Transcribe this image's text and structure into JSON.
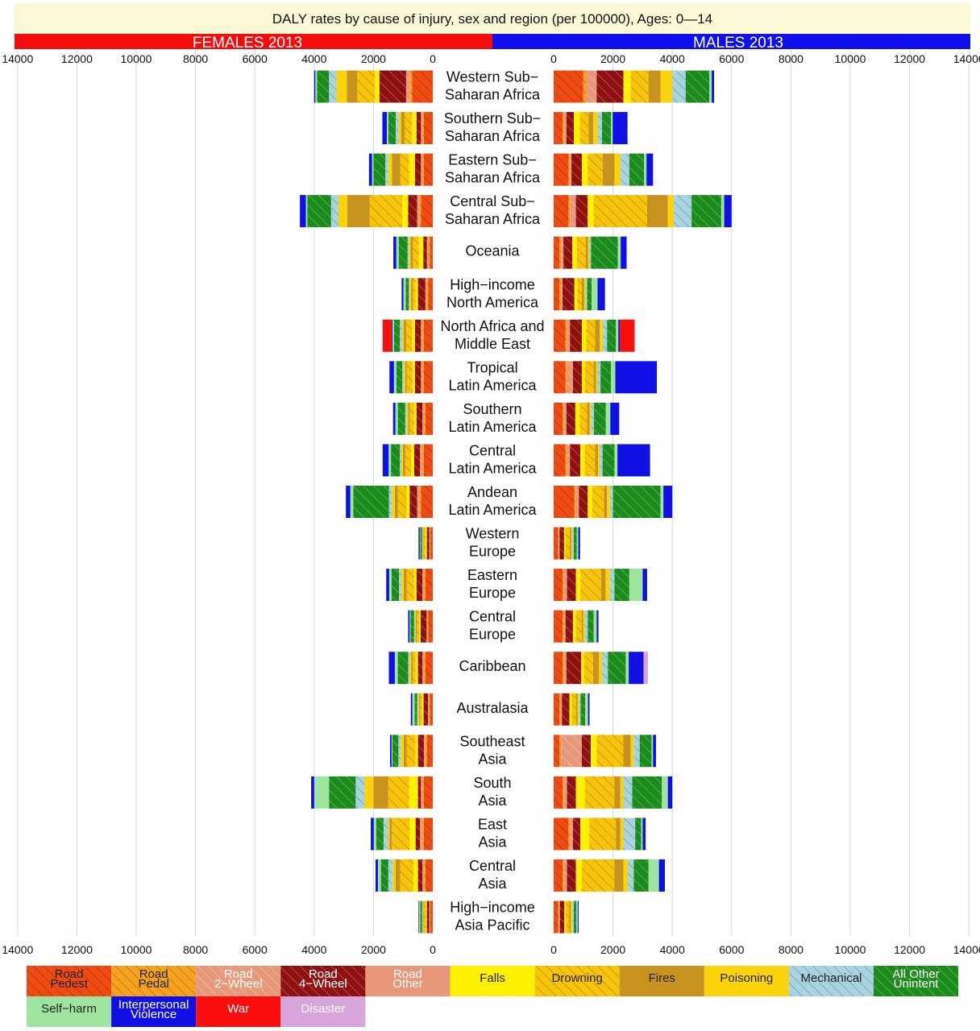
{
  "chart_data": {
    "type": "bar",
    "title": "DALY rates by cause of injury, sex and region (per 100000), Ages: 0—14",
    "panels": [
      "FEMALES 2013",
      "MALES 2013"
    ],
    "axis_ticks": [
      "14000",
      "12000",
      "10000",
      "8000",
      "6000",
      "4000",
      "2000",
      "0"
    ],
    "axis_ticks_right": [
      "0",
      "2000",
      "4000",
      "6000",
      "8000",
      "10000",
      "12000",
      "14000"
    ],
    "xlim": [
      0,
      14000
    ],
    "grid": true,
    "legend_position": "bottom",
    "causes": [
      {
        "name": "Road Pedest",
        "label": [
          "Road",
          "Pedest"
        ],
        "color": "#f04b12",
        "hatch": true,
        "text_color": "#222222"
      },
      {
        "name": "Road Pedal",
        "label": [
          "Road",
          "Pedal"
        ],
        "color": "#f7a21e",
        "hatch": true,
        "text_color": "#222222"
      },
      {
        "name": "Road 2-Wheel",
        "label": [
          "Road",
          "2−Wheel"
        ],
        "color": "#e8987a",
        "hatch": true,
        "text_color": "#ffffff"
      },
      {
        "name": "Road 4-Wheel",
        "label": [
          "Road",
          "4−Wheel"
        ],
        "color": "#8e1010",
        "hatch": true,
        "text_color": "#ffffff"
      },
      {
        "name": "Road Other",
        "label": [
          "Road",
          "Other"
        ],
        "color": "#e8987a",
        "hatch": false,
        "text_color": "#ffffff"
      },
      {
        "name": "Falls",
        "label": [
          "Falls"
        ],
        "color": "#fdf100",
        "hatch": false,
        "text_color": "#222222"
      },
      {
        "name": "Drowning",
        "label": [
          "Drowning"
        ],
        "color": "#f8c40a",
        "hatch": true,
        "text_color": "#222222"
      },
      {
        "name": "Fires",
        "label": [
          "Fires"
        ],
        "color": "#c8921e",
        "hatch": false,
        "text_color": "#222222"
      },
      {
        "name": "Poisoning",
        "label": [
          "Poisoning"
        ],
        "color": "#fbd30b",
        "hatch": false,
        "text_color": "#222222"
      },
      {
        "name": "Mechanical",
        "label": [
          "Mechanical"
        ],
        "color": "#a8d4e2",
        "hatch": true,
        "text_color": "#222222"
      },
      {
        "name": "All Other Unintent",
        "label": [
          "All Other",
          "Unintent"
        ],
        "color": "#1b8c1b",
        "hatch": true,
        "text_color": "#ffffff"
      },
      {
        "name": "Self-harm",
        "label": [
          "Self−harm"
        ],
        "color": "#9ee39e",
        "hatch": false,
        "text_color": "#222222"
      },
      {
        "name": "Interpersonal Violence",
        "label": [
          "Interpersonal",
          "Violence"
        ],
        "color": "#1010e6",
        "hatch": false,
        "text_color": "#ffffff"
      },
      {
        "name": "War",
        "label": [
          "War"
        ],
        "color": "#fa0d0d",
        "hatch": false,
        "text_color": "#ffffff"
      },
      {
        "name": "Disaster",
        "label": [
          "Disaster"
        ],
        "color": "#d8a4dc",
        "hatch": false,
        "text_color": "#ffffff"
      }
    ],
    "regions": [
      {
        "name": [
          "Western Sub−",
          "Saharan Africa"
        ],
        "female": [
          700,
          80,
          120,
          900,
          0,
          150,
          600,
          350,
          350,
          250,
          400,
          60,
          40,
          0,
          0
        ],
        "male": [
          1000,
          100,
          350,
          900,
          0,
          250,
          600,
          400,
          400,
          450,
          800,
          80,
          80,
          0,
          0
        ]
      },
      {
        "name": [
          "Southern Sub−",
          "Saharan Africa"
        ],
        "female": [
          300,
          50,
          50,
          150,
          0,
          150,
          250,
          120,
          80,
          100,
          250,
          50,
          150,
          0,
          0
        ],
        "male": [
          300,
          50,
          80,
          250,
          0,
          200,
          300,
          150,
          150,
          150,
          300,
          60,
          500,
          0,
          0
        ]
      },
      {
        "name": [
          "Eastern Sub−",
          "Saharan Africa"
        ],
        "female": [
          300,
          50,
          50,
          200,
          0,
          200,
          300,
          280,
          120,
          100,
          400,
          50,
          100,
          0,
          0
        ],
        "male": [
          500,
          50,
          50,
          350,
          0,
          200,
          500,
          400,
          200,
          300,
          500,
          80,
          220,
          0,
          0
        ]
      },
      {
        "name": [
          "Central Sub−",
          "Saharan Africa"
        ],
        "female": [
          400,
          50,
          80,
          300,
          0,
          200,
          1100,
          750,
          300,
          250,
          800,
          50,
          200,
          0,
          0
        ],
        "male": [
          500,
          50,
          200,
          400,
          0,
          200,
          1800,
          700,
          200,
          600,
          1000,
          100,
          250,
          0,
          0
        ]
      },
      {
        "name": [
          "Oceania"
        ],
        "female": [
          100,
          50,
          50,
          120,
          0,
          150,
          200,
          80,
          50,
          50,
          300,
          80,
          100,
          0,
          0
        ],
        "male": [
          200,
          50,
          80,
          300,
          0,
          150,
          300,
          80,
          50,
          50,
          900,
          100,
          200,
          0,
          0
        ]
      },
      {
        "name": [
          "High−income",
          "North America"
        ],
        "female": [
          150,
          50,
          50,
          250,
          0,
          80,
          100,
          50,
          50,
          30,
          100,
          80,
          60,
          0,
          0
        ],
        "male": [
          200,
          50,
          50,
          400,
          0,
          100,
          150,
          80,
          50,
          50,
          150,
          200,
          250,
          0,
          0
        ]
      },
      {
        "name": [
          "North Africa and",
          "Middle East"
        ],
        "female": [
          300,
          50,
          50,
          200,
          0,
          100,
          200,
          80,
          50,
          80,
          200,
          50,
          30,
          300,
          0
        ],
        "male": [
          400,
          50,
          100,
          400,
          0,
          150,
          300,
          150,
          100,
          150,
          300,
          80,
          50,
          500,
          0
        ]
      },
      {
        "name": [
          "Tropical",
          "Latin America"
        ],
        "female": [
          300,
          50,
          50,
          200,
          0,
          80,
          200,
          50,
          50,
          50,
          200,
          80,
          150,
          0,
          0
        ],
        "male": [
          400,
          50,
          200,
          300,
          0,
          100,
          300,
          80,
          50,
          100,
          350,
          150,
          1400,
          0,
          0
        ]
      },
      {
        "name": [
          "Southern",
          "Latin America"
        ],
        "female": [
          250,
          50,
          50,
          200,
          0,
          80,
          150,
          50,
          50,
          50,
          250,
          80,
          80,
          0,
          0
        ],
        "male": [
          300,
          50,
          80,
          300,
          0,
          150,
          250,
          80,
          50,
          100,
          400,
          150,
          300,
          0,
          0
        ]
      },
      {
        "name": [
          "Central",
          "Latin America"
        ],
        "female": [
          300,
          50,
          80,
          200,
          0,
          100,
          200,
          80,
          50,
          50,
          300,
          80,
          200,
          0,
          0
        ],
        "male": [
          400,
          50,
          100,
          350,
          0,
          150,
          350,
          100,
          50,
          100,
          400,
          100,
          1100,
          0,
          0
        ]
      },
      {
        "name": [
          "Andean",
          "Latin America"
        ],
        "female": [
          400,
          50,
          80,
          250,
          0,
          100,
          300,
          100,
          100,
          100,
          1200,
          100,
          150,
          0,
          0
        ],
        "male": [
          700,
          50,
          100,
          300,
          0,
          150,
          400,
          100,
          100,
          100,
          1600,
          100,
          300,
          0,
          0
        ]
      },
      {
        "name": [
          "Western",
          "Europe"
        ],
        "female": [
          80,
          20,
          20,
          80,
          0,
          40,
          60,
          20,
          20,
          20,
          60,
          20,
          40,
          0,
          0
        ],
        "male": [
          150,
          20,
          30,
          150,
          0,
          50,
          150,
          50,
          30,
          50,
          100,
          50,
          60,
          0,
          0
        ]
      },
      {
        "name": [
          "Eastern",
          "Europe"
        ],
        "female": [
          250,
          50,
          50,
          200,
          0,
          80,
          250,
          100,
          80,
          80,
          250,
          80,
          100,
          0,
          0
        ],
        "male": [
          300,
          50,
          100,
          300,
          0,
          150,
          700,
          150,
          150,
          150,
          500,
          450,
          150,
          0,
          0
        ]
      },
      {
        "name": [
          "Central",
          "Europe"
        ],
        "female": [
          150,
          30,
          30,
          200,
          0,
          50,
          80,
          30,
          30,
          30,
          120,
          30,
          50,
          0,
          0
        ],
        "male": [
          300,
          50,
          50,
          250,
          0,
          100,
          200,
          50,
          50,
          100,
          200,
          100,
          60,
          0,
          0
        ]
      },
      {
        "name": [
          "Caribbean"
        ],
        "female": [
          250,
          50,
          50,
          150,
          0,
          80,
          100,
          50,
          50,
          50,
          350,
          100,
          200,
          0,
          0
        ],
        "male": [
          300,
          50,
          80,
          500,
          0,
          100,
          300,
          200,
          100,
          200,
          600,
          100,
          500,
          0,
          150
        ]
      },
      {
        "name": [
          "Australasia"
        ],
        "female": [
          100,
          30,
          30,
          150,
          0,
          50,
          80,
          30,
          30,
          30,
          80,
          80,
          50,
          0,
          0
        ],
        "male": [
          200,
          30,
          50,
          250,
          0,
          80,
          150,
          50,
          50,
          50,
          150,
          100,
          50,
          0,
          0
        ]
      },
      {
        "name": [
          "Southeast",
          "Asia"
        ],
        "female": [
          200,
          50,
          50,
          200,
          0,
          80,
          300,
          100,
          100,
          80,
          200,
          30,
          50,
          0,
          0
        ],
        "male": [
          200,
          50,
          700,
          300,
          0,
          200,
          900,
          250,
          100,
          200,
          400,
          50,
          100,
          0,
          0
        ]
      },
      {
        "name": [
          "South",
          "Asia"
        ],
        "female": [
          300,
          50,
          50,
          100,
          0,
          300,
          700,
          500,
          300,
          300,
          900,
          500,
          100,
          0,
          0
        ],
        "male": [
          300,
          50,
          100,
          300,
          0,
          300,
          1000,
          200,
          100,
          300,
          1000,
          200,
          150,
          0,
          0
        ]
      },
      {
        "name": [
          "East",
          "Asia"
        ],
        "female": [
          300,
          50,
          80,
          150,
          0,
          200,
          600,
          80,
          50,
          150,
          250,
          80,
          100,
          0,
          0
        ],
        "male": [
          500,
          50,
          100,
          250,
          0,
          300,
          900,
          150,
          100,
          400,
          200,
          50,
          100,
          0,
          0
        ]
      },
      {
        "name": [
          "Central",
          "Asia"
        ],
        "female": [
          250,
          50,
          50,
          150,
          0,
          150,
          450,
          150,
          100,
          150,
          250,
          100,
          80,
          0,
          0
        ],
        "male": [
          300,
          50,
          100,
          300,
          0,
          200,
          1100,
          300,
          150,
          200,
          500,
          350,
          200,
          0,
          0
        ]
      },
      {
        "name": [
          "High−income",
          "Asia Pacific"
        ],
        "female": [
          80,
          20,
          20,
          80,
          0,
          30,
          60,
          30,
          20,
          20,
          60,
          40,
          20,
          0,
          0
        ],
        "male": [
          150,
          30,
          30,
          150,
          0,
          50,
          120,
          50,
          50,
          50,
          80,
          50,
          30,
          0,
          0
        ]
      }
    ]
  }
}
